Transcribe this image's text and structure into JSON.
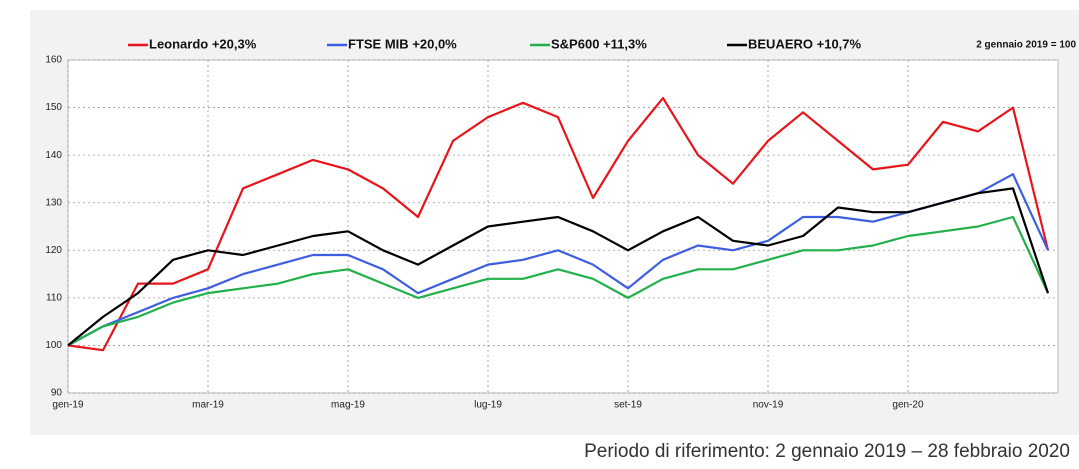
{
  "chart_data": {
    "type": "line",
    "note": "2 gennaio 2019 = 100",
    "caption": "Periodo di riferimento: 2 gennaio 2019 – 28 febbraio 2020",
    "categories": [
      "gen-19",
      null,
      null,
      null,
      "mar-19",
      null,
      null,
      null,
      "mag-19",
      null,
      null,
      null,
      "lug-19",
      null,
      null,
      null,
      "set-19",
      null,
      null,
      null,
      "nov-19",
      null,
      null,
      null,
      "gen-20",
      null,
      null,
      null,
      null
    ],
    "ylim": [
      90,
      160
    ],
    "yticks": [
      90,
      100,
      110,
      120,
      130,
      140,
      150,
      160
    ],
    "grid": true,
    "legend": "top",
    "series": [
      {
        "name": "Leonardo +20,3%",
        "color": "#e8141b",
        "values": [
          100,
          99,
          113,
          113,
          116,
          133,
          136,
          139,
          137,
          133,
          127,
          143,
          148,
          151,
          148,
          131,
          143,
          152,
          140,
          134,
          143,
          149,
          143,
          137,
          138,
          147,
          145,
          150,
          120
        ]
      },
      {
        "name": "FTSE MIB  +20,0%",
        "color": "#3d5ee0",
        "values": [
          100,
          104,
          107,
          110,
          112,
          115,
          117,
          119,
          119,
          116,
          111,
          114,
          117,
          118,
          120,
          117,
          112,
          118,
          121,
          120,
          122,
          127,
          127,
          126,
          128,
          130,
          132,
          136,
          120
        ]
      },
      {
        "name": "S&P600 +11,3%",
        "color": "#22b04b",
        "values": [
          100,
          104,
          106,
          109,
          111,
          112,
          113,
          115,
          116,
          113,
          110,
          112,
          114,
          114,
          116,
          114,
          110,
          114,
          116,
          116,
          118,
          120,
          120,
          121,
          123,
          124,
          125,
          127,
          111
        ]
      },
      {
        "name": "BEUAERO +10,7%",
        "color": "#000000",
        "values": [
          100,
          106,
          111,
          118,
          120,
          119,
          121,
          123,
          124,
          120,
          117,
          121,
          125,
          126,
          127,
          124,
          120,
          124,
          127,
          122,
          121,
          123,
          129,
          128,
          128,
          130,
          132,
          133,
          111
        ]
      }
    ]
  }
}
